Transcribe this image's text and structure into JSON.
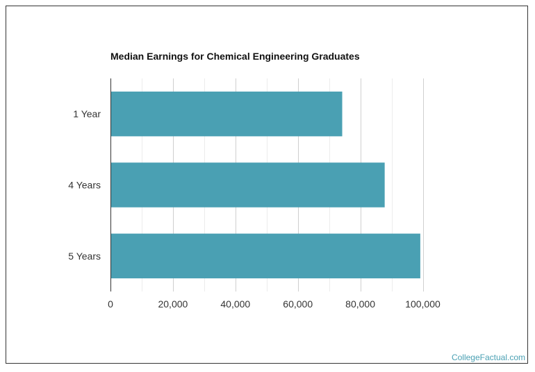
{
  "chart_data": {
    "type": "bar",
    "orientation": "horizontal",
    "title": "Median Earnings for Chemical Engineering Graduates",
    "categories": [
      "1 Year",
      "4 Years",
      "5 Years"
    ],
    "values": [
      74200,
      87800,
      99200
    ],
    "x_ticks": [
      "0",
      "20,000",
      "40,000",
      "60,000",
      "80,000",
      "100,000"
    ],
    "x_tick_values": [
      0,
      20000,
      40000,
      60000,
      80000,
      100000
    ],
    "xlim": [
      0,
      100000
    ],
    "grid": true,
    "xlabel": "",
    "ylabel": "",
    "bar_color": "#4aa0b3"
  },
  "watermark": {
    "text": "CollegeFactual.com",
    "color": "#4aa0b3"
  }
}
